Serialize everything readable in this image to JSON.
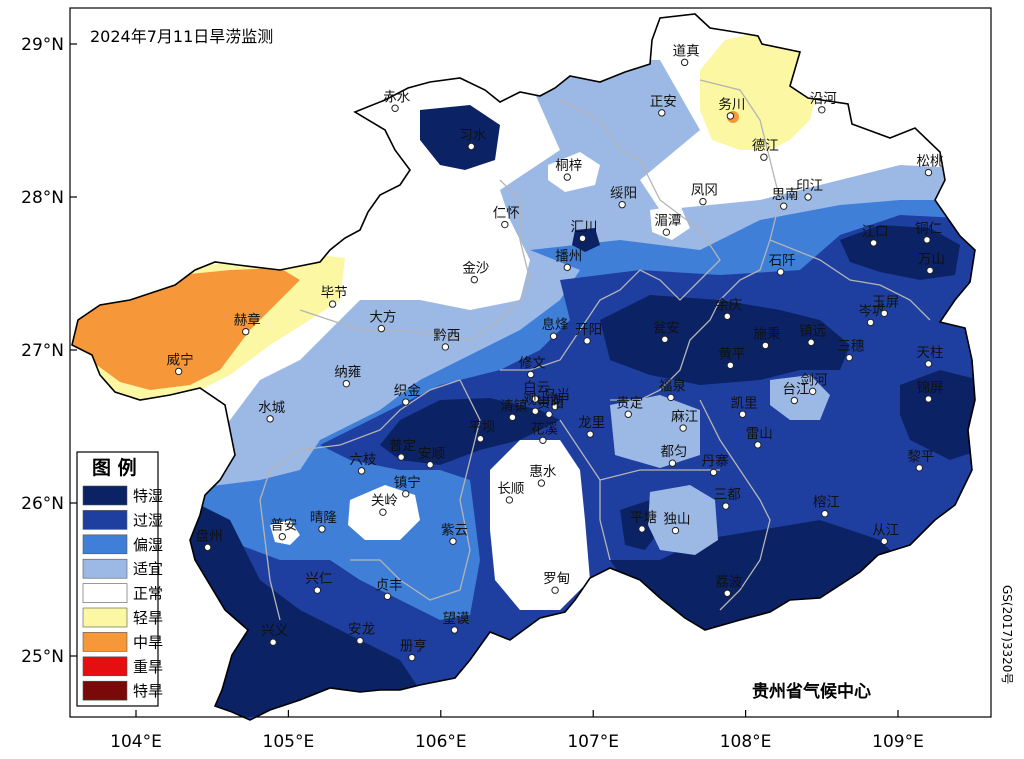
{
  "map": {
    "title": "2024年7月11日旱涝监测",
    "organization": "贵州省气候中心",
    "map_code": "GS(2017)3320号",
    "colors": {
      "特湿": "#0b2265",
      "过湿": "#1f3fa0",
      "偏湿": "#3f7fd8",
      "适宜": "#9cb9e6",
      "正常": "#ffffff",
      "轻旱": "#fbf7a3",
      "中旱": "#f6983a",
      "重旱": "#e50e10",
      "特旱": "#7a0a0a"
    },
    "lon_ticks": [
      "104°E",
      "105°E",
      "106°E",
      "107°E",
      "108°E",
      "109°E"
    ],
    "lat_ticks": [
      "29°N",
      "28°N",
      "27°N",
      "26°N",
      "25°N"
    ],
    "legend": {
      "title": "图  例",
      "items": [
        {
          "label": "特湿",
          "color": "#0b2265"
        },
        {
          "label": "过湿",
          "color": "#1f3fa0"
        },
        {
          "label": "偏湿",
          "color": "#3f7fd8"
        },
        {
          "label": "适宜",
          "color": "#9cb9e6"
        },
        {
          "label": "正常",
          "color": "#ffffff"
        },
        {
          "label": "轻旱",
          "color": "#fbf7a3"
        },
        {
          "label": "中旱",
          "color": "#f6983a"
        },
        {
          "label": "重旱",
          "color": "#e50e10"
        },
        {
          "label": "特旱",
          "color": "#7a0a0a"
        }
      ]
    },
    "stations": [
      {
        "name": "道真",
        "lon": 107.6,
        "lat": 28.88
      },
      {
        "name": "务川",
        "lon": 107.9,
        "lat": 28.53
      },
      {
        "name": "沿河",
        "lon": 108.5,
        "lat": 28.57
      },
      {
        "name": "正安",
        "lon": 107.45,
        "lat": 28.55
      },
      {
        "name": "赤水",
        "lon": 105.7,
        "lat": 28.58
      },
      {
        "name": "习水",
        "lon": 106.2,
        "lat": 28.33
      },
      {
        "name": "桐梓",
        "lon": 106.83,
        "lat": 28.13
      },
      {
        "name": "德江",
        "lon": 108.12,
        "lat": 28.26
      },
      {
        "name": "松桃",
        "lon": 109.2,
        "lat": 28.16
      },
      {
        "name": "绥阳",
        "lon": 107.19,
        "lat": 27.95
      },
      {
        "name": "凤冈",
        "lon": 107.72,
        "lat": 27.97
      },
      {
        "name": "印江",
        "lon": 108.41,
        "lat": 28.0
      },
      {
        "name": "思南",
        "lon": 108.25,
        "lat": 27.94
      },
      {
        "name": "仁怀",
        "lon": 106.42,
        "lat": 27.82
      },
      {
        "name": "湄潭",
        "lon": 107.48,
        "lat": 27.77
      },
      {
        "name": "汇川",
        "lon": 106.93,
        "lat": 27.73
      },
      {
        "name": "江口",
        "lon": 108.84,
        "lat": 27.7
      },
      {
        "name": "铜仁",
        "lon": 109.19,
        "lat": 27.72
      },
      {
        "name": "金沙",
        "lon": 106.22,
        "lat": 27.46
      },
      {
        "name": "播州",
        "lon": 106.83,
        "lat": 27.54
      },
      {
        "name": "石阡",
        "lon": 108.23,
        "lat": 27.51
      },
      {
        "name": "万山",
        "lon": 109.21,
        "lat": 27.52
      },
      {
        "name": "毕节",
        "lon": 105.29,
        "lat": 27.3
      },
      {
        "name": "赫章",
        "lon": 104.72,
        "lat": 27.12
      },
      {
        "name": "大方",
        "lon": 105.61,
        "lat": 27.14
      },
      {
        "name": "黔西",
        "lon": 106.03,
        "lat": 27.02
      },
      {
        "name": "息烽",
        "lon": 106.74,
        "lat": 27.09
      },
      {
        "name": "开阳",
        "lon": 106.96,
        "lat": 27.06
      },
      {
        "name": "余庆",
        "lon": 107.88,
        "lat": 27.22
      },
      {
        "name": "瓮安",
        "lon": 107.47,
        "lat": 27.07
      },
      {
        "name": "施秉",
        "lon": 108.13,
        "lat": 27.03
      },
      {
        "name": "镇远",
        "lon": 108.43,
        "lat": 27.05
      },
      {
        "name": "岑巩",
        "lon": 108.82,
        "lat": 27.18
      },
      {
        "name": "玉屏",
        "lon": 108.91,
        "lat": 27.24
      },
      {
        "name": "威宁",
        "lon": 104.28,
        "lat": 26.86
      },
      {
        "name": "黄平",
        "lon": 107.9,
        "lat": 26.9
      },
      {
        "name": "三穗",
        "lon": 108.68,
        "lat": 26.95
      },
      {
        "name": "天柱",
        "lon": 109.2,
        "lat": 26.91
      },
      {
        "name": "纳雍",
        "lon": 105.38,
        "lat": 26.78
      },
      {
        "name": "修文",
        "lon": 106.59,
        "lat": 26.84
      },
      {
        "name": "白云",
        "lon": 106.62,
        "lat": 26.68
      },
      {
        "name": "乌当",
        "lon": 106.75,
        "lat": 26.63
      },
      {
        "name": "清镇",
        "lon": 106.47,
        "lat": 26.56
      },
      {
        "name": "观山湖",
        "lon": 106.62,
        "lat": 26.6
      },
      {
        "name": "贵阳",
        "lon": 106.71,
        "lat": 26.58
      },
      {
        "name": "龙里",
        "lon": 106.98,
        "lat": 26.45
      },
      {
        "name": "贵定",
        "lon": 107.23,
        "lat": 26.58
      },
      {
        "name": "福泉",
        "lon": 107.51,
        "lat": 26.69
      },
      {
        "name": "凯里",
        "lon": 107.98,
        "lat": 26.58
      },
      {
        "name": "台江",
        "lon": 108.32,
        "lat": 26.67
      },
      {
        "name": "剑河",
        "lon": 108.44,
        "lat": 26.73
      },
      {
        "name": "锦屏",
        "lon": 109.2,
        "lat": 26.68
      },
      {
        "name": "水城",
        "lon": 104.88,
        "lat": 26.55
      },
      {
        "name": "织金",
        "lon": 105.77,
        "lat": 26.66
      },
      {
        "name": "平坝",
        "lon": 106.26,
        "lat": 26.42
      },
      {
        "name": "花溪",
        "lon": 106.67,
        "lat": 26.41
      },
      {
        "name": "普定",
        "lon": 105.74,
        "lat": 26.3
      },
      {
        "name": "安顺",
        "lon": 105.93,
        "lat": 26.25
      },
      {
        "name": "麻江",
        "lon": 107.59,
        "lat": 26.49
      },
      {
        "name": "雷山",
        "lon": 108.08,
        "lat": 26.38
      },
      {
        "name": "都匀",
        "lon": 107.52,
        "lat": 26.26
      },
      {
        "name": "丹寨",
        "lon": 107.79,
        "lat": 26.2
      },
      {
        "name": "黎平",
        "lon": 109.14,
        "lat": 26.23
      },
      {
        "name": "六枝",
        "lon": 105.48,
        "lat": 26.21
      },
      {
        "name": "镇宁",
        "lon": 105.77,
        "lat": 26.06
      },
      {
        "name": "惠水",
        "lon": 106.66,
        "lat": 26.13
      },
      {
        "name": "长顺",
        "lon": 106.45,
        "lat": 26.02
      },
      {
        "name": "三都",
        "lon": 107.87,
        "lat": 25.98
      },
      {
        "name": "榕江",
        "lon": 108.52,
        "lat": 25.93
      },
      {
        "name": "关岭",
        "lon": 105.62,
        "lat": 25.94
      },
      {
        "name": "晴隆",
        "lon": 105.22,
        "lat": 25.83
      },
      {
        "name": "普安",
        "lon": 104.96,
        "lat": 25.78
      },
      {
        "name": "紫云",
        "lon": 106.08,
        "lat": 25.75
      },
      {
        "name": "平塘",
        "lon": 107.32,
        "lat": 25.83
      },
      {
        "name": "独山",
        "lon": 107.54,
        "lat": 25.82
      },
      {
        "name": "从江",
        "lon": 108.91,
        "lat": 25.75
      },
      {
        "name": "盘州",
        "lon": 104.47,
        "lat": 25.71
      },
      {
        "name": "兴仁",
        "lon": 105.19,
        "lat": 25.43
      },
      {
        "name": "贞丰",
        "lon": 105.65,
        "lat": 25.39
      },
      {
        "name": "罗甸",
        "lon": 106.75,
        "lat": 25.43
      },
      {
        "name": "荔波",
        "lon": 107.88,
        "lat": 25.41
      },
      {
        "name": "安龙",
        "lon": 105.47,
        "lat": 25.1
      },
      {
        "name": "望谟",
        "lon": 106.09,
        "lat": 25.17
      },
      {
        "name": "兴义",
        "lon": 104.9,
        "lat": 25.09
      },
      {
        "name": "册亨",
        "lon": 105.81,
        "lat": 24.99
      }
    ]
  }
}
